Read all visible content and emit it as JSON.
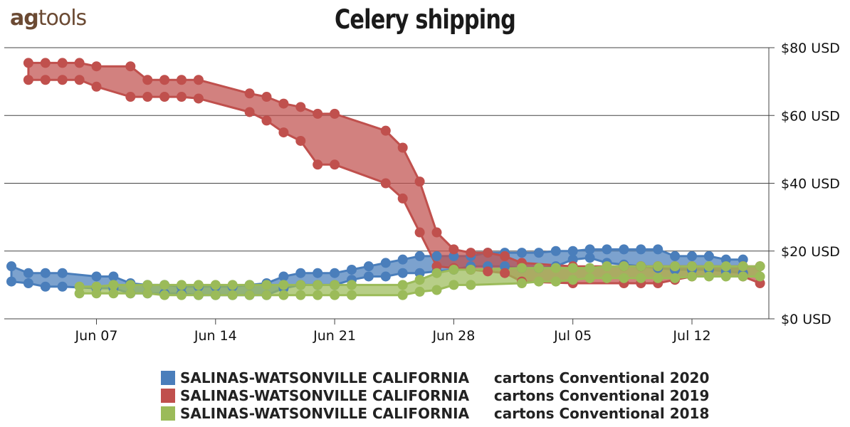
{
  "logo": {
    "ag": "ag",
    "tools": "tools"
  },
  "chart_data": {
    "type": "area",
    "title": "Celery shipping",
    "x_ticks": [
      "Jun 07",
      "Jun 14",
      "Jun 21",
      "Jun 28",
      "Jul 05",
      "Jul 12"
    ],
    "y_ticks": [
      "$0 USD",
      "$20 USD",
      "$40 USD",
      "$60 USD",
      "$80 USD"
    ],
    "ylim": [
      0,
      80
    ],
    "grid": true,
    "legend_placement": "bottom",
    "series": [
      {
        "name": "SALINAS-WATSONVILLE CALIFORNIA     cartons Conventional 2020",
        "color": "#4a7ebb",
        "x": [
          "Jun 02",
          "Jun 03",
          "Jun 04",
          "Jun 05",
          "Jun 07",
          "Jun 08",
          "Jun 09",
          "Jun 10",
          "Jun 11",
          "Jun 12",
          "Jun 13",
          "Jun 14",
          "Jun 15",
          "Jun 16",
          "Jun 17",
          "Jun 18",
          "Jun 19",
          "Jun 20",
          "Jun 21",
          "Jun 22",
          "Jun 23",
          "Jun 24",
          "Jun 25",
          "Jun 26",
          "Jun 27",
          "Jun 28",
          "Jun 29",
          "Jun 30",
          "Jul 01",
          "Jul 02",
          "Jul 03",
          "Jul 04",
          "Jul 05",
          "Jul 06",
          "Jul 07",
          "Jul 08",
          "Jul 09",
          "Jul 10",
          "Jul 11",
          "Jul 12",
          "Jul 13",
          "Jul 14",
          "Jul 15"
        ],
        "high": [
          15.5,
          13.5,
          13.5,
          13.5,
          12.5,
          12.5,
          10.5,
          10,
          10,
          9.5,
          9.5,
          9.5,
          9.5,
          10,
          10.5,
          12.5,
          13.5,
          13.5,
          13.5,
          14.5,
          15.5,
          16.5,
          17.5,
          18.5,
          18.5,
          18.5,
          18.5,
          19.5,
          19.5,
          19.5,
          19.5,
          20,
          20,
          20.5,
          20.5,
          20.5,
          20.5,
          20.5,
          18.5,
          18.5,
          18.5,
          17.5,
          17.5
        ],
        "low": [
          11,
          10.5,
          9.5,
          9.5,
          9,
          9,
          7.5,
          7.5,
          7.5,
          7.5,
          7,
          7,
          7,
          7,
          7,
          9,
          10,
          10,
          10,
          11.5,
          12.5,
          12.5,
          13.5,
          13.5,
          14,
          14.5,
          15.5,
          15.5,
          15.5,
          15,
          15,
          15.5,
          17.5,
          18,
          16.5,
          16,
          15.5,
          15,
          14.5,
          14.5,
          14.5,
          14,
          13.5
        ]
      },
      {
        "name": "SALINAS-WATSONVILLE CALIFORNIA     cartons Conventional 2019",
        "color": "#c0504d",
        "x": [
          "Jun 03",
          "Jun 04",
          "Jun 05",
          "Jun 06",
          "Jun 07",
          "Jun 09",
          "Jun 10",
          "Jun 11",
          "Jun 12",
          "Jun 13",
          "Jun 16",
          "Jun 17",
          "Jun 18",
          "Jun 19",
          "Jun 20",
          "Jun 21",
          "Jun 24",
          "Jun 25",
          "Jun 26",
          "Jun 27",
          "Jun 28",
          "Jun 29",
          "Jun 30",
          "Jul 01",
          "Jul 02",
          "Jul 05",
          "Jul 08",
          "Jul 09",
          "Jul 10",
          "Jul 11",
          "Jul 12",
          "Jul 15",
          "Jul 16"
        ],
        "high": [
          75.5,
          75.5,
          75.5,
          75.5,
          74.5,
          74.5,
          70.5,
          70.5,
          70.5,
          70.5,
          66.5,
          65.5,
          63.5,
          62.5,
          60.5,
          60.5,
          55.5,
          50.5,
          40.5,
          25.5,
          20.5,
          19.5,
          19.5,
          18.5,
          16.5,
          15.5,
          15.5,
          15.5,
          15.5,
          15.5,
          15.5,
          15.5,
          15.5
        ],
        "low": [
          70.5,
          70.5,
          70.5,
          70.5,
          68.5,
          65.5,
          65.5,
          65.5,
          65.5,
          65,
          61,
          58.5,
          55,
          52.5,
          45.5,
          45.5,
          40,
          35.5,
          25.5,
          15.5,
          15,
          14.5,
          14,
          13.5,
          11,
          10.5,
          10.5,
          10.5,
          10.5,
          11.5,
          12.5,
          12.5,
          10.5
        ]
      },
      {
        "name": "SALINAS-WATSONVILLE CALIFORNIA     cartons Conventional 2018",
        "color": "#9bbb59",
        "x": [
          "Jun 06",
          "Jun 07",
          "Jun 08",
          "Jun 09",
          "Jun 10",
          "Jun 11",
          "Jun 12",
          "Jun 13",
          "Jun 14",
          "Jun 15",
          "Jun 16",
          "Jun 17",
          "Jun 18",
          "Jun 19",
          "Jun 20",
          "Jun 21",
          "Jun 22",
          "Jun 25",
          "Jun 26",
          "Jun 27",
          "Jun 28",
          "Jun 29",
          "Jul 02",
          "Jul 03",
          "Jul 04",
          "Jul 05",
          "Jul 06",
          "Jul 07",
          "Jul 08",
          "Jul 09",
          "Jul 10",
          "Jul 11",
          "Jul 12",
          "Jul 13",
          "Jul 14",
          "Jul 15",
          "Jul 16"
        ],
        "high": [
          9.5,
          9.5,
          10,
          10,
          10,
          10,
          10,
          10,
          10,
          10,
          10,
          10,
          10,
          10,
          10,
          10,
          10,
          10,
          11.5,
          13.5,
          14.5,
          14.5,
          15,
          15,
          15,
          15,
          15,
          15.5,
          15.5,
          15.5,
          15.5,
          15.5,
          15.5,
          15.5,
          15.5,
          15.5,
          15.5
        ],
        "low": [
          7.5,
          7.5,
          7.5,
          7.5,
          7.5,
          7,
          7,
          7,
          7,
          7,
          7,
          7,
          7,
          7,
          7,
          7,
          7,
          7,
          8,
          8.5,
          10,
          10,
          10.5,
          11,
          11,
          11.5,
          12,
          12,
          12,
          12,
          12,
          12,
          12.5,
          12.5,
          12.5,
          12.5,
          12.5
        ]
      }
    ]
  }
}
